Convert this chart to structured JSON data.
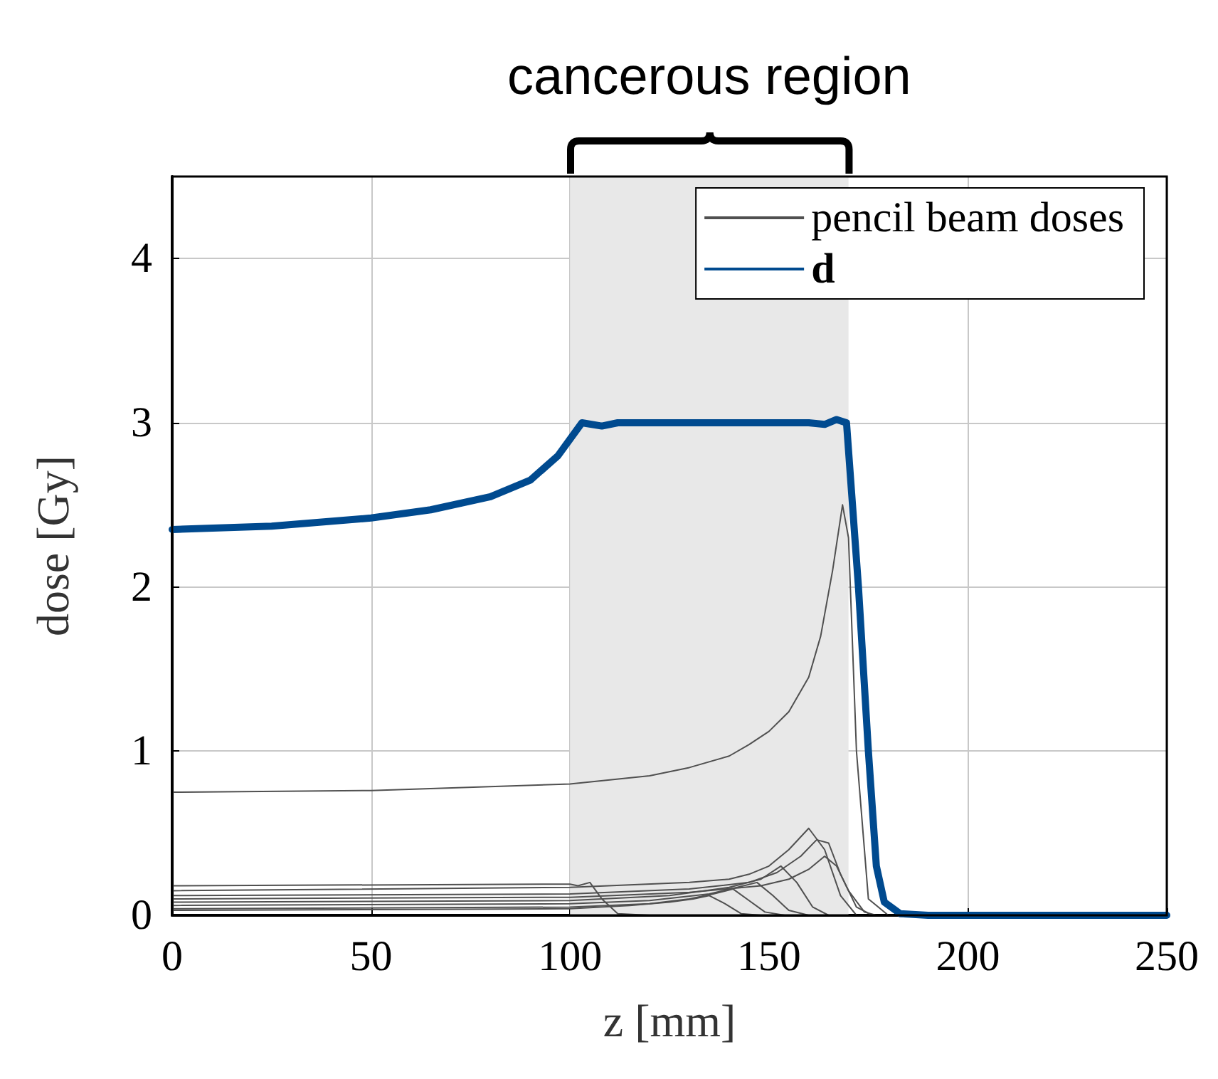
{
  "chart_data": {
    "type": "line",
    "xlabel": "z [mm]",
    "ylabel": "dose [Gy]",
    "xlim": [
      0,
      250
    ],
    "ylim": [
      0,
      4.5
    ],
    "xticks": [
      0,
      50,
      100,
      150,
      200,
      250
    ],
    "yticks": [
      0,
      1,
      2,
      3,
      4
    ],
    "grid": true,
    "legend": "top right",
    "marker": "none",
    "line_style": "solid",
    "bands": [
      {
        "axis": "x",
        "from": 100,
        "to": 170,
        "label": "cancerous region",
        "color": "#e8e8e8"
      }
    ],
    "series": [
      {
        "name": "pencil beam doses",
        "color": "#505050",
        "x": [
          0,
          50,
          100,
          120,
          130,
          140,
          145,
          150,
          155,
          160,
          163,
          166,
          168.5,
          170,
          172,
          175,
          180,
          250
        ],
        "values": [
          0.75,
          0.76,
          0.8,
          0.85,
          0.9,
          0.97,
          1.04,
          1.12,
          1.24,
          1.45,
          1.7,
          2.1,
          2.5,
          2.3,
          1.0,
          0.1,
          0,
          0
        ]
      },
      {
        "color": "#505050",
        "x": [
          0,
          100,
          102,
          105,
          108,
          112,
          120,
          250
        ],
        "values": [
          0.18,
          0.19,
          0.18,
          0.2,
          0.1,
          0.01,
          0,
          0
        ]
      },
      {
        "color": "#505050",
        "x": [
          0,
          100,
          130,
          140,
          145,
          150,
          155,
          160,
          164,
          168,
          172,
          250
        ],
        "values": [
          0.15,
          0.17,
          0.2,
          0.22,
          0.25,
          0.3,
          0.4,
          0.53,
          0.4,
          0.12,
          0,
          0
        ]
      },
      {
        "color": "#505050",
        "x": [
          0,
          100,
          130,
          145,
          152,
          158,
          162,
          165,
          168,
          172,
          176,
          250
        ],
        "values": [
          0.12,
          0.13,
          0.16,
          0.2,
          0.26,
          0.36,
          0.46,
          0.44,
          0.25,
          0.05,
          0,
          0
        ]
      },
      {
        "color": "#505050",
        "x": [
          0,
          100,
          130,
          148,
          155,
          160,
          164,
          167,
          170,
          174,
          177,
          250
        ],
        "values": [
          0.1,
          0.11,
          0.14,
          0.18,
          0.22,
          0.28,
          0.36,
          0.3,
          0.15,
          0.02,
          0,
          0
        ]
      },
      {
        "color": "#505050",
        "x": [
          0,
          100,
          125,
          140,
          148,
          153,
          157,
          161,
          165,
          250
        ],
        "values": [
          0.08,
          0.09,
          0.12,
          0.17,
          0.22,
          0.3,
          0.2,
          0.05,
          0,
          0
        ]
      },
      {
        "color": "#505050",
        "x": [
          0,
          100,
          120,
          135,
          142,
          147,
          151,
          155,
          160,
          250
        ],
        "values": [
          0.06,
          0.07,
          0.09,
          0.13,
          0.17,
          0.2,
          0.12,
          0.03,
          0,
          0
        ]
      },
      {
        "color": "#505050",
        "x": [
          0,
          100,
          120,
          130,
          136,
          141,
          145,
          149,
          154,
          250
        ],
        "values": [
          0.04,
          0.05,
          0.07,
          0.1,
          0.13,
          0.16,
          0.09,
          0.02,
          0,
          0
        ]
      },
      {
        "color": "#505050",
        "x": [
          0,
          100,
          115,
          125,
          131,
          135,
          139,
          143,
          148,
          250
        ],
        "values": [
          0.03,
          0.04,
          0.06,
          0.08,
          0.1,
          0.12,
          0.07,
          0.01,
          0,
          0
        ]
      },
      {
        "name": "d",
        "color": "#004a8f",
        "x": [
          0,
          25,
          50,
          65,
          80,
          90,
          97,
          103,
          108,
          112,
          160,
          164,
          167,
          169.5,
          172.5,
          175,
          177,
          179,
          183,
          190,
          250
        ],
        "values": [
          2.35,
          2.37,
          2.42,
          2.47,
          2.55,
          2.65,
          2.8,
          3.0,
          2.98,
          3.0,
          3.0,
          2.99,
          3.02,
          3.0,
          2.0,
          1.0,
          0.3,
          0.08,
          0.01,
          0,
          0
        ]
      }
    ]
  }
}
